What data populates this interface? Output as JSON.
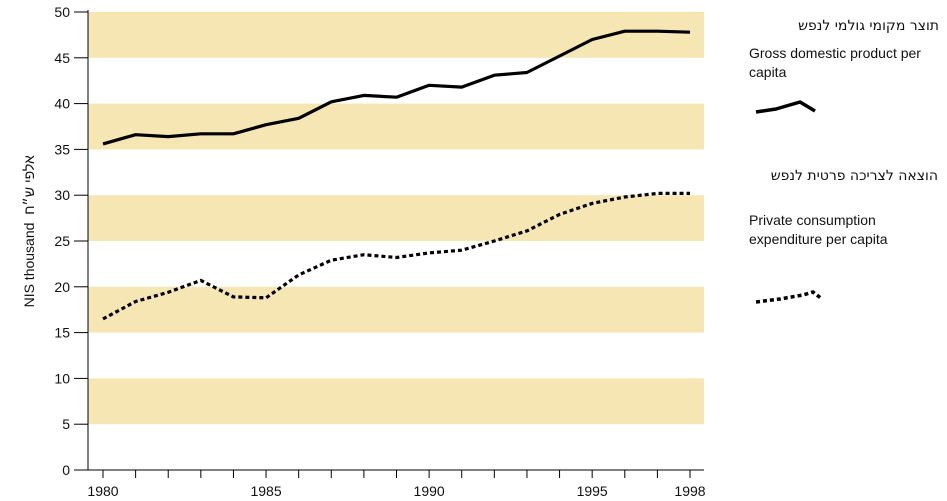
{
  "chart_data": {
    "type": "line",
    "x": [
      1980,
      1981,
      1982,
      1983,
      1984,
      1985,
      1986,
      1987,
      1988,
      1989,
      1990,
      1991,
      1992,
      1993,
      1994,
      1995,
      1996,
      1997,
      1998
    ],
    "x_tick_labels": [
      "1980",
      "1985",
      "1990",
      "1995",
      "1998"
    ],
    "y_ticks": [
      0,
      5,
      10,
      15,
      20,
      25,
      30,
      35,
      40,
      45,
      50
    ],
    "ylim": [
      0,
      50
    ],
    "xlim": [
      1980,
      1998
    ],
    "ylabel_hebrew": "אלפי ש״ח",
    "ylabel_english": "NIS thousand",
    "background_bands_color": "#f5e6b3",
    "series": [
      {
        "name_hebrew": "תוצר מקומי גולמי לנפש",
        "name_english": "Gross domestic product per capita",
        "style": "solid",
        "color": "#000000",
        "values": [
          35.6,
          36.6,
          36.4,
          36.7,
          36.7,
          37.7,
          38.4,
          40.2,
          40.9,
          40.7,
          42.0,
          41.8,
          43.1,
          43.4,
          45.2,
          47.0,
          47.9,
          47.9,
          47.8
        ]
      },
      {
        "name_hebrew": "הוצאה לצריכה פרטית לנפש",
        "name_english": "Private consumption expenditure per capita",
        "style": "dotted",
        "color": "#000000",
        "values": [
          16.5,
          18.4,
          19.4,
          20.7,
          18.9,
          18.8,
          21.3,
          22.9,
          23.5,
          23.2,
          23.7,
          24.0,
          25.0,
          26.1,
          27.9,
          29.1,
          29.8,
          30.2,
          30.2
        ]
      }
    ]
  }
}
